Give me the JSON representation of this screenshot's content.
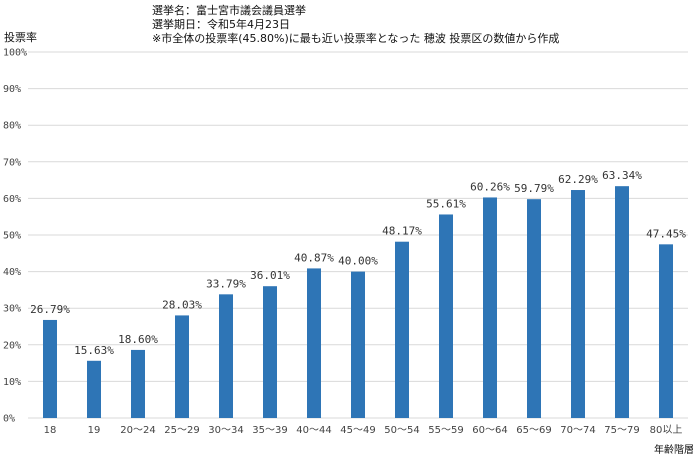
{
  "chart_data": {
    "type": "bar",
    "notes": [
      "選挙名：富士宮市議会議員選挙",
      "選挙期日：令和5年4月23日",
      "※市全体の投票率(45.80%)に最も近い投票率となった 穂波 投票区の数値から作成"
    ],
    "ylabel": "投票率",
    "xlabel": "年齢階層",
    "ylim": [
      0,
      100
    ],
    "yticks": [
      "0%",
      "10%",
      "20%",
      "30%",
      "40%",
      "50%",
      "60%",
      "70%",
      "80%",
      "90%",
      "100%"
    ],
    "categories": [
      "18",
      "19",
      "20～24",
      "25～29",
      "30～34",
      "35～39",
      "40～44",
      "45～49",
      "50～54",
      "55～59",
      "60～64",
      "65～69",
      "70～74",
      "75～79",
      "80以上"
    ],
    "values": [
      26.79,
      15.63,
      18.6,
      28.03,
      33.79,
      36.01,
      40.87,
      40.0,
      48.17,
      55.61,
      60.26,
      59.79,
      62.29,
      63.34,
      47.45
    ],
    "data_labels": [
      "26.79%",
      "15.63%",
      "18.60%",
      "28.03%",
      "33.79%",
      "36.01%",
      "40.87%",
      "40.00%",
      "48.17%",
      "55.61%",
      "60.26%",
      "59.79%",
      "62.29%",
      "63.34%",
      "47.45%"
    ],
    "bar_color": "#2E75B6",
    "grid_color": "#D9D9D9"
  }
}
